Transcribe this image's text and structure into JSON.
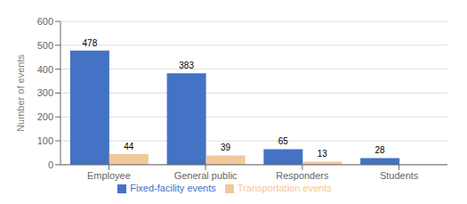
{
  "chart_data": {
    "type": "bar",
    "categories": [
      "Employee",
      "General public",
      "Responders",
      "Students"
    ],
    "series": [
      {
        "name": "Fixed-facility events",
        "color": "#4472C4",
        "values": [
          478,
          383,
          65,
          28
        ]
      },
      {
        "name": "Transportation events",
        "color": "#F0C89A",
        "values": [
          44,
          39,
          13,
          0
        ]
      }
    ],
    "ylabel": "Number of events",
    "ylim": [
      0,
      600
    ],
    "yticks": [
      0,
      100,
      200,
      300,
      400,
      500,
      600
    ],
    "grid": true,
    "legend": "bottom",
    "data_labels": true
  }
}
